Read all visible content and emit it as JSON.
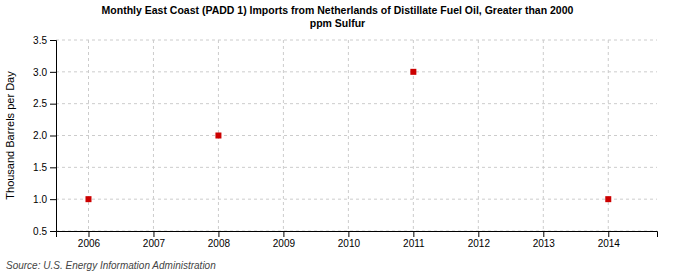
{
  "chart_data": {
    "type": "scatter",
    "title": "Monthly East Coast (PADD 1) Imports from Netherlands of Distillate Fuel Oil, Greater than 2000\nppm Sulfur",
    "y_label": "Thousand Barrels per Day",
    "annotations": [
      "Source: U.S. Energy Information Administration"
    ],
    "x": [
      2006,
      2008,
      2011,
      2014
    ],
    "values": [
      1.0,
      2.0,
      3.0,
      1.0
    ],
    "color": "#cc0000",
    "marker": "square",
    "xlim": [
      2005.5,
      2014.75
    ],
    "xticks": [
      2006,
      2007,
      2008,
      2009,
      2010,
      2011,
      2012,
      2013,
      2014
    ],
    "ylim": [
      0.5,
      3.5
    ],
    "yticks": [
      0.5,
      {
        "value": 1.0,
        "label": "1.0"
      },
      1.5,
      {
        "value": 2.0,
        "label": "2.0"
      },
      2.5,
      {
        "value": 3.0,
        "label": "3.0"
      },
      3.5
    ],
    "grid": true
  }
}
